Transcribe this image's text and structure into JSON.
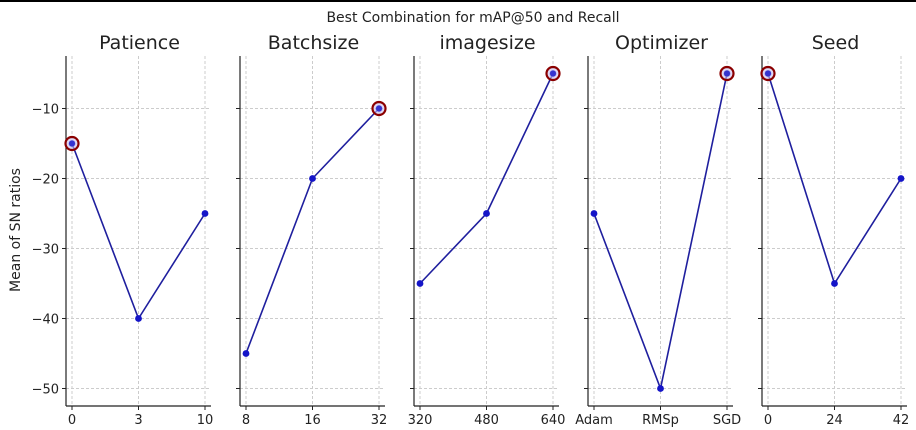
{
  "chart_data": {
    "type": "line",
    "title": "Best Combination for mAP@50 and Recall",
    "ylabel": "Mean of SN ratios",
    "ylim": [
      -52.5,
      -2.5
    ],
    "yticks": [
      -10,
      -20,
      -30,
      -40,
      -50
    ],
    "grid": true,
    "colors": {
      "line": "#1f1f9e",
      "marker": "#1515c8",
      "highlight_ring": "#8b0000"
    },
    "panels": [
      {
        "name": "Patience",
        "categories": [
          "0",
          "3",
          "10"
        ],
        "values": [
          -15,
          -40,
          -25
        ],
        "best_index": 0
      },
      {
        "name": "Batchsize",
        "categories": [
          "8",
          "16",
          "32"
        ],
        "values": [
          -45,
          -20,
          -10
        ],
        "best_index": 2
      },
      {
        "name": "imagesize",
        "categories": [
          "320",
          "480",
          "640"
        ],
        "values": [
          -35,
          -25,
          -5
        ],
        "best_index": 2
      },
      {
        "name": "Optimizer",
        "categories": [
          "Adam",
          "RMSp",
          "SGD"
        ],
        "values": [
          -25,
          -50,
          -5
        ],
        "best_index": 2
      },
      {
        "name": "Seed",
        "categories": [
          "0",
          "24",
          "42"
        ],
        "values": [
          -5,
          -35,
          -20
        ],
        "best_index": 0
      }
    ]
  }
}
